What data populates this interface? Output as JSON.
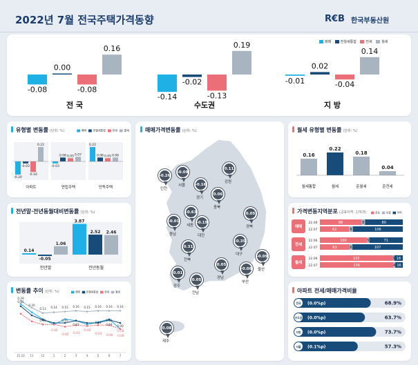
{
  "header": {
    "title": "2022년 7월 전국주택가격동향",
    "logo": "R€B",
    "logo_sub": "한국부동산원"
  },
  "colors": {
    "sale": "#1fb0e6",
    "composite": "#174b7a",
    "jeonse": "#ec6f77",
    "monthly": "#a8b4c0"
  },
  "legend": {
    "sale": "매매",
    "composite": "전월세통합",
    "jeonse": "전세",
    "monthly": "월세"
  },
  "chart_data": [
    {
      "type": "bar",
      "title": "",
      "categories": [
        "전 국",
        "수도권",
        "지 방"
      ],
      "series": [
        {
          "name": "매매",
          "values": [
            -0.08,
            -0.14,
            -0.01
          ]
        },
        {
          "name": "전월세통합",
          "values": [
            0.0,
            -0.02,
            0.02
          ]
        },
        {
          "name": "전세",
          "values": [
            -0.08,
            -0.13,
            -0.04
          ]
        },
        {
          "name": "월세",
          "values": [
            0.16,
            0.19,
            0.14
          ]
        }
      ]
    },
    {
      "type": "bar",
      "title": "유형별 변동률",
      "unit": "(단위: %)",
      "categories": [
        "아파트",
        "연립주택",
        "단독주택"
      ],
      "series": [
        {
          "name": "매매",
          "values": [
            -0.2,
            -0.03,
            0.22
          ]
        },
        {
          "name": "전월세통합",
          "values": [
            -0.03,
            0.06,
            0.06
          ]
        },
        {
          "name": "전세",
          "values": [
            -0.16,
            0.05,
            0.05
          ]
        },
        {
          "name": "월세",
          "values": [
            0.22,
            0.07,
            0.06
          ]
        }
      ]
    },
    {
      "type": "bar",
      "title": "월세 유형별 변동률",
      "unit": "(단위: %)",
      "categories": [
        "월세통합",
        "월세",
        "준월세",
        "준전세"
      ],
      "values": [
        0.16,
        0.22,
        0.18,
        0.04
      ]
    },
    {
      "type": "bar",
      "title": "전년말·전년동월대비변동률",
      "unit": "(단위: %)",
      "categories": [
        "전년말",
        "전년동월"
      ],
      "series": [
        {
          "name": "매매",
          "values": [
            0.14,
            3.87
          ]
        },
        {
          "name": "전월세통합",
          "values": [
            -0.05,
            2.52
          ]
        },
        {
          "name": "월세",
          "values": [
            1.06,
            2.46
          ]
        }
      ]
    },
    {
      "type": "line",
      "title": "변동률 추이",
      "unit": "(단위: %)",
      "x": [
        "21.10",
        "11",
        "12",
        "1",
        "2",
        "3",
        "4",
        "5",
        "6",
        "7"
      ],
      "series": [
        {
          "name": "월세",
          "values": [
            0.29,
            0.2,
            0.13,
            0.14,
            0.15,
            0.16,
            0.15,
            0.16,
            0.16,
            0.16
          ]
        },
        {
          "name": "매매",
          "values": [
            0.25,
            0.14,
            0.05,
            -0.02,
            0.05,
            0.03,
            -0.02,
            0.01,
            0.05,
            -0.08
          ]
        },
        {
          "name": "전월세통합",
          "values": [
            0.22,
            0.1,
            0.04,
            0.0,
            0.0,
            0.03,
            0.0,
            0.0,
            0.04,
            0.0
          ]
        },
        {
          "name": "전세",
          "values": [
            0.12,
            0.02,
            -0.02,
            -0.02,
            -0.05,
            -0.03,
            -0.04,
            -0.03,
            -0.03,
            -0.08
          ]
        }
      ],
      "point_labels": [
        "0.29",
        "0.25",
        "0.20",
        "0.13",
        "0.14",
        "0.15",
        "0.16",
        "0.15",
        "0.16",
        "0.16",
        "0.16",
        "0.05",
        "-0.02",
        "0.05",
        "0.01",
        "0.05",
        "0.04",
        "0.03",
        "-0.02",
        "-0.02",
        "-0.03",
        "-0.03",
        "-0.08",
        "0.00",
        "-0.08",
        "-0.08"
      ]
    },
    {
      "type": "bar",
      "title": "가격변동지역분포",
      "unit": "(공표지역: 176개)",
      "legend": [
        "상승",
        "보합",
        "하락"
      ],
      "groups": [
        {
          "name": "매매",
          "rows": [
            {
              "period": "22.06",
              "values": [
                88,
                8,
                80
              ]
            },
            {
              "period": "22.07",
              "values": [
                62,
                8,
                106
              ]
            }
          ]
        },
        {
          "name": "전세",
          "rows": [
            {
              "period": "22.06",
              "values": [
                100,
                5,
                71
              ]
            },
            {
              "period": "22.07",
              "values": [
                63,
                6,
                107
              ]
            }
          ]
        },
        {
          "name": "월세",
          "rows": [
            {
              "period": "22.06",
              "values": [
                155,
                3,
                18
              ]
            },
            {
              "period": "22.07",
              "values": [
                156,
                4,
                16
              ]
            }
          ]
        }
      ]
    },
    {
      "type": "bar",
      "title": "아파트 전세/매매가격비율",
      "categories": [
        "전국",
        "수도권",
        "지방",
        "서울"
      ],
      "changes": [
        "(0.0%p)",
        "(0.0%p)",
        "(0.0%p)",
        "(0.1%p)"
      ],
      "values": [
        68.9,
        63.7,
        73.7,
        57.3
      ]
    }
  ],
  "map": {
    "title": "매매가격변동률",
    "unit": "(단위: %)",
    "regions": [
      {
        "name": "인천",
        "value": "-0.26"
      },
      {
        "name": "서울",
        "value": "-0.09"
      },
      {
        "name": "경기",
        "value": "-0.16"
      },
      {
        "name": "강원",
        "value": "0.11"
      },
      {
        "name": "충북",
        "value": "0.06"
      },
      {
        "name": "세종",
        "value": "-0.63"
      },
      {
        "name": "대전",
        "value": "-0.19"
      },
      {
        "name": "충남",
        "value": "-0.01"
      },
      {
        "name": "경북",
        "value": "0.05"
      },
      {
        "name": "대구",
        "value": "-0.35"
      },
      {
        "name": "울산",
        "value": "-0.09"
      },
      {
        "name": "전북",
        "value": "0.31"
      },
      {
        "name": "경남",
        "value": "0.05"
      },
      {
        "name": "부산",
        "value": "-0.08"
      },
      {
        "name": "광주",
        "value": "0.01"
      },
      {
        "name": "전남",
        "value": "0.05"
      },
      {
        "name": "제주",
        "value": "0.08"
      }
    ]
  }
}
